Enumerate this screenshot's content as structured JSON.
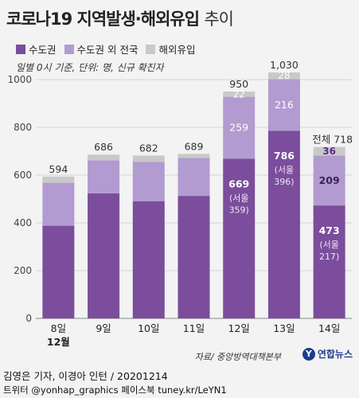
{
  "title": "코로나19 지역발생·해외유입",
  "title_suffix": "추이",
  "note": "일별 0시 기준, 단위: 명, 신규 확진자",
  "source": "자료/ 중앙방역대책본부",
  "logo_text": "연합뉴스",
  "credit": "김영은 기자, 이경아 인턴 / 20201214",
  "social": "트위터 @yonhap_graphics  페이스북 tuney.kr/LeYN1",
  "colors": {
    "capital": "#7b4d9c",
    "other_regions": "#b29bd0",
    "imported": "#c9c9c9"
  },
  "chart_data": {
    "type": "bar",
    "stacked": true,
    "categories": [
      "8일",
      "9일",
      "10일",
      "11일",
      "12일",
      "13일",
      "14일"
    ],
    "month_label": "12월",
    "ylim": [
      0,
      1000
    ],
    "yticks": [
      0,
      200,
      400,
      600,
      800,
      1000
    ],
    "grid": true,
    "series": [
      {
        "name": "수도권",
        "values": [
          388,
          524,
          491,
          513,
          669,
          786,
          473
        ]
      },
      {
        "name": "수도권 외 전국",
        "values": [
          180,
          138,
          165,
          159,
          259,
          216,
          209
        ]
      },
      {
        "name": "해외유입",
        "values": [
          26,
          24,
          26,
          17,
          22,
          28,
          36
        ]
      }
    ],
    "totals": [
      "594",
      "686",
      "682",
      "689",
      "950",
      "1,030",
      "718"
    ],
    "total_prefix_last": "전체",
    "labeled_bars": [
      4,
      5,
      6
    ],
    "capital_parenthetical": {
      "4": [
        "(서울",
        "359)"
      ],
      "5": [
        "(서울",
        "396)"
      ],
      "6": [
        "(서울",
        "217)"
      ]
    }
  }
}
